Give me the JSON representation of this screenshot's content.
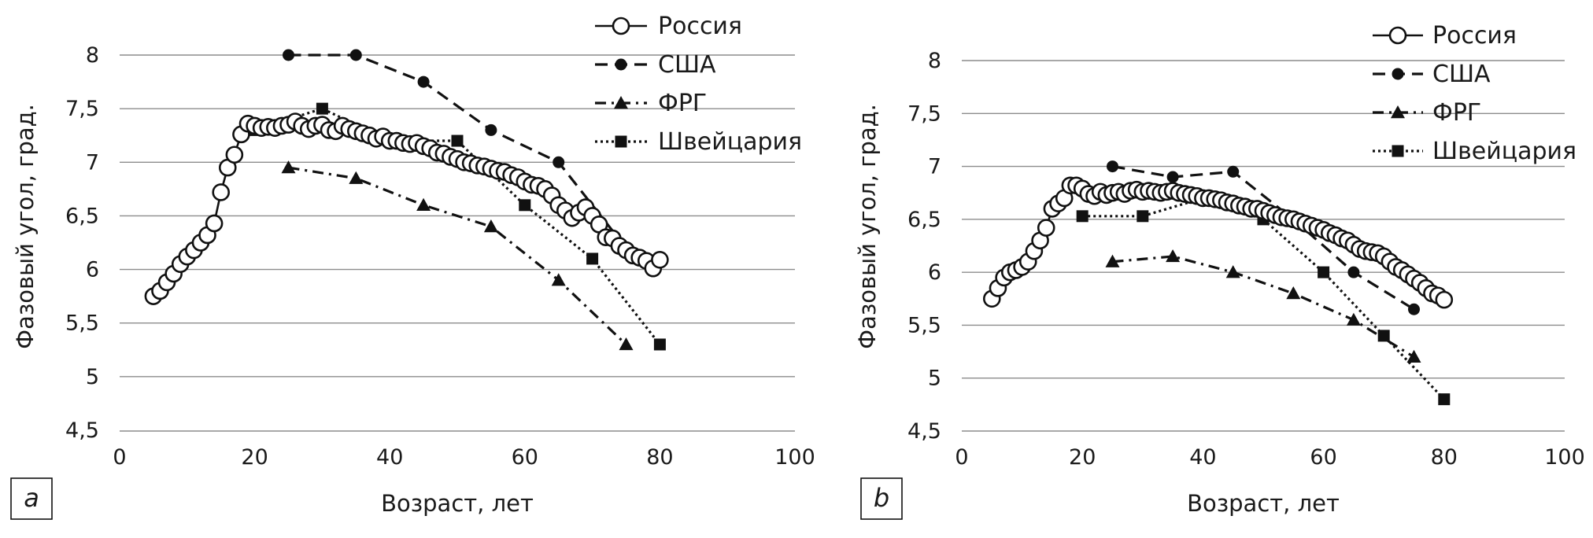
{
  "chart_data": [
    {
      "type": "line",
      "panel_label": "a",
      "xlabel": "Возраст, лет",
      "ylabel": "Фазовый угол, град.",
      "xlim": [
        0,
        100
      ],
      "ylim": [
        4.5,
        8.3
      ],
      "x_ticks": [
        "0",
        "20",
        "40",
        "60",
        "80",
        "100"
      ],
      "y_ticks": [
        "4,5",
        "5",
        "5,5",
        "6",
        "6,5",
        "7",
        "7,5",
        "8"
      ],
      "grid": "horizontal",
      "legend_position": "top-right",
      "series": [
        {
          "name": "Россия",
          "style": "solid",
          "marker": "open-circle",
          "x": [
            5,
            6,
            7,
            8,
            9,
            10,
            11,
            12,
            13,
            14,
            15,
            16,
            17,
            18,
            19,
            20,
            21,
            22,
            23,
            24,
            25,
            26,
            27,
            28,
            29,
            30,
            31,
            32,
            33,
            34,
            35,
            36,
            37,
            38,
            39,
            40,
            41,
            42,
            43,
            44,
            45,
            46,
            47,
            48,
            49,
            50,
            51,
            52,
            53,
            54,
            55,
            56,
            57,
            58,
            59,
            60,
            61,
            62,
            63,
            64,
            65,
            66,
            67,
            68,
            69,
            70,
            71,
            72,
            73,
            74,
            75,
            76,
            77,
            78,
            79,
            80
          ],
          "y": [
            5.75,
            5.8,
            5.88,
            5.96,
            6.05,
            6.12,
            6.18,
            6.25,
            6.32,
            6.43,
            6.72,
            6.95,
            7.07,
            7.26,
            7.36,
            7.34,
            7.32,
            7.33,
            7.32,
            7.34,
            7.35,
            7.38,
            7.34,
            7.31,
            7.34,
            7.35,
            7.3,
            7.29,
            7.34,
            7.31,
            7.29,
            7.27,
            7.25,
            7.22,
            7.24,
            7.2,
            7.2,
            7.18,
            7.17,
            7.18,
            7.15,
            7.13,
            7.09,
            7.08,
            7.05,
            7.03,
            7.0,
            6.99,
            6.97,
            6.96,
            6.94,
            6.92,
            6.91,
            6.88,
            6.86,
            6.82,
            6.79,
            6.78,
            6.75,
            6.69,
            6.6,
            6.55,
            6.48,
            6.53,
            6.58,
            6.5,
            6.42,
            6.3,
            6.29,
            6.22,
            6.18,
            6.13,
            6.11,
            6.08,
            6.01,
            6.09
          ]
        },
        {
          "name": "США",
          "style": "dashed",
          "marker": "filled-circle",
          "x": [
            25,
            35,
            45,
            55,
            65,
            75
          ],
          "y": [
            8.0,
            8.0,
            7.75,
            7.3,
            7.0,
            6.2
          ]
        },
        {
          "name": "ФРГ",
          "style": "dash-dot",
          "marker": "filled-triangle",
          "x": [
            25,
            35,
            45,
            55,
            65,
            75
          ],
          "y": [
            6.95,
            6.85,
            6.6,
            6.4,
            5.9,
            5.3
          ]
        },
        {
          "name": "Швейцария",
          "style": "dotted",
          "marker": "filled-square",
          "x": [
            20,
            30,
            40,
            50,
            60,
            70,
            80
          ],
          "y": [
            7.3,
            7.5,
            7.2,
            7.2,
            6.6,
            6.1,
            5.3
          ]
        }
      ]
    },
    {
      "type": "line",
      "panel_label": "b",
      "xlabel": "Возраст, лет",
      "ylabel": "Фазовый угол, град.",
      "xlim": [
        0,
        100
      ],
      "ylim": [
        4.5,
        8.3
      ],
      "x_ticks": [
        "0",
        "20",
        "40",
        "60",
        "80",
        "100"
      ],
      "y_ticks": [
        "4,5",
        "5",
        "5,5",
        "6",
        "6,5",
        "7",
        "7,5",
        "8"
      ],
      "grid": "horizontal",
      "legend_position": "top-right",
      "series": [
        {
          "name": "Россия",
          "style": "solid",
          "marker": "open-circle",
          "x": [
            5,
            6,
            7,
            8,
            9,
            10,
            11,
            12,
            13,
            14,
            15,
            16,
            17,
            18,
            19,
            20,
            21,
            22,
            23,
            24,
            25,
            26,
            27,
            28,
            29,
            30,
            31,
            32,
            33,
            34,
            35,
            36,
            37,
            38,
            39,
            40,
            41,
            42,
            43,
            44,
            45,
            46,
            47,
            48,
            49,
            50,
            51,
            52,
            53,
            54,
            55,
            56,
            57,
            58,
            59,
            60,
            61,
            62,
            63,
            64,
            65,
            66,
            67,
            68,
            69,
            70,
            71,
            72,
            73,
            74,
            75,
            76,
            77,
            78,
            79,
            80
          ],
          "y": [
            5.75,
            5.85,
            5.95,
            6.0,
            6.02,
            6.05,
            6.1,
            6.2,
            6.3,
            6.42,
            6.6,
            6.65,
            6.7,
            6.82,
            6.82,
            6.79,
            6.74,
            6.72,
            6.76,
            6.73,
            6.75,
            6.76,
            6.74,
            6.77,
            6.78,
            6.76,
            6.77,
            6.76,
            6.75,
            6.76,
            6.77,
            6.75,
            6.74,
            6.73,
            6.72,
            6.7,
            6.7,
            6.69,
            6.68,
            6.66,
            6.65,
            6.63,
            6.62,
            6.6,
            6.6,
            6.58,
            6.56,
            6.54,
            6.52,
            6.51,
            6.5,
            6.48,
            6.46,
            6.44,
            6.42,
            6.4,
            6.37,
            6.35,
            6.32,
            6.3,
            6.26,
            6.22,
            6.2,
            6.19,
            6.18,
            6.15,
            6.1,
            6.05,
            6.02,
            5.98,
            5.94,
            5.9,
            5.85,
            5.8,
            5.78,
            5.74
          ]
        },
        {
          "name": "США",
          "style": "dashed",
          "marker": "filled-circle",
          "x": [
            25,
            35,
            45,
            55,
            65,
            75
          ],
          "y": [
            7.0,
            6.9,
            6.95,
            6.5,
            6.0,
            5.65
          ]
        },
        {
          "name": "ФРГ",
          "style": "dash-dot",
          "marker": "filled-triangle",
          "x": [
            25,
            35,
            45,
            55,
            65,
            75
          ],
          "y": [
            6.1,
            6.15,
            6.0,
            5.8,
            5.55,
            5.2
          ]
        },
        {
          "name": "Швейцария",
          "style": "dotted",
          "marker": "filled-square",
          "x": [
            20,
            30,
            40,
            50,
            60,
            70,
            80
          ],
          "y": [
            6.53,
            6.53,
            6.7,
            6.5,
            6.0,
            5.4,
            4.8
          ]
        }
      ]
    }
  ]
}
